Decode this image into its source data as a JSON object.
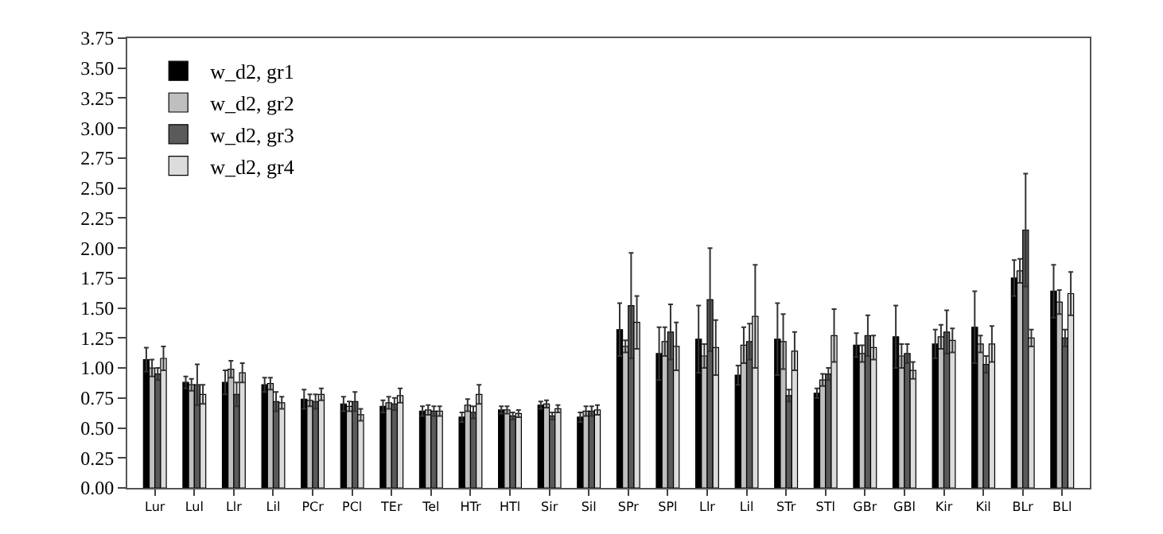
{
  "chart_data": {
    "type": "bar",
    "categories": [
      "Lur",
      "Lul",
      "Llr",
      "Lil",
      "PCr",
      "PCl",
      "TEr",
      "Tel",
      "HTr",
      "HTl",
      "Sir",
      "Sil",
      "SPr",
      "SPl",
      "Llr",
      "Lil",
      "STr",
      "STl",
      "GBr",
      "GBl",
      "Kir",
      "Kil",
      "BLr",
      "BLl"
    ],
    "series": [
      {
        "name": "w_d2, gr1",
        "color": "#000000",
        "values": [
          1.07,
          0.88,
          0.88,
          0.86,
          0.74,
          0.7,
          0.68,
          0.64,
          0.59,
          0.65,
          0.69,
          0.59,
          1.32,
          1.12,
          1.24,
          0.94,
          1.24,
          0.79,
          1.19,
          1.26,
          1.2,
          1.34,
          1.75,
          1.64
        ],
        "errors": [
          0.1,
          0.05,
          0.1,
          0.06,
          0.08,
          0.06,
          0.05,
          0.04,
          0.04,
          0.03,
          0.03,
          0.04,
          0.22,
          0.22,
          0.28,
          0.08,
          0.3,
          0.04,
          0.1,
          0.26,
          0.12,
          0.3,
          0.15,
          0.22
        ]
      },
      {
        "name": "w_d2, gr2",
        "color": "#bfbfbf",
        "values": [
          1.0,
          0.86,
          0.99,
          0.87,
          0.73,
          0.68,
          0.71,
          0.65,
          0.69,
          0.65,
          0.7,
          0.64,
          1.18,
          1.22,
          1.1,
          1.19,
          1.22,
          0.9,
          1.12,
          1.1,
          1.26,
          1.2,
          1.81,
          1.55
        ],
        "errors": [
          0.07,
          0.05,
          0.07,
          0.05,
          0.05,
          0.04,
          0.05,
          0.04,
          0.05,
          0.03,
          0.03,
          0.04,
          0.05,
          0.12,
          0.1,
          0.15,
          0.23,
          0.05,
          0.07,
          0.1,
          0.1,
          0.07,
          0.1,
          0.1
        ]
      },
      {
        "name": "w_d2, gr3",
        "color": "#5a5a5a",
        "values": [
          0.95,
          0.86,
          0.78,
          0.72,
          0.72,
          0.72,
          0.7,
          0.64,
          0.63,
          0.6,
          0.6,
          0.64,
          1.52,
          1.3,
          1.57,
          1.22,
          0.77,
          0.95,
          1.27,
          1.12,
          1.3,
          1.03,
          2.15,
          1.25
        ],
        "errors": [
          0.05,
          0.17,
          0.1,
          0.08,
          0.06,
          0.08,
          0.05,
          0.04,
          0.05,
          0.03,
          0.03,
          0.04,
          0.44,
          0.23,
          0.43,
          0.15,
          0.05,
          0.05,
          0.17,
          0.08,
          0.18,
          0.07,
          0.47,
          0.07
        ]
      },
      {
        "name": "w_d2, gr4",
        "color": "#dcdcdc",
        "values": [
          1.08,
          0.78,
          0.96,
          0.71,
          0.78,
          0.61,
          0.77,
          0.64,
          0.78,
          0.62,
          0.66,
          0.65,
          1.38,
          1.18,
          1.17,
          1.43,
          1.14,
          1.27,
          1.17,
          0.98,
          1.23,
          1.2,
          1.25,
          1.62
        ],
        "errors": [
          0.1,
          0.08,
          0.08,
          0.05,
          0.05,
          0.05,
          0.06,
          0.04,
          0.08,
          0.03,
          0.03,
          0.04,
          0.22,
          0.2,
          0.23,
          0.43,
          0.16,
          0.22,
          0.1,
          0.07,
          0.1,
          0.15,
          0.07,
          0.18
        ]
      }
    ],
    "ylim": [
      0,
      3.75
    ],
    "yticks": [
      {
        "value": 0,
        "label": "0.00"
      },
      {
        "value": 0.25,
        "label": "0.25"
      },
      {
        "value": 0.5,
        "label": "0.50"
      },
      {
        "value": 0.75,
        "label": "0.75"
      },
      {
        "value": 1,
        "label": "1.00"
      },
      {
        "value": 1.25,
        "label": "1.25"
      },
      {
        "value": 1.5,
        "label": "1.50"
      },
      {
        "value": 1.75,
        "label": "1.75"
      },
      {
        "value": 2,
        "label": "2.00"
      },
      {
        "value": 2.25,
        "label": "2.25"
      },
      {
        "value": 2.5,
        "label": "2.50"
      },
      {
        "value": 2.75,
        "label": "2.75"
      },
      {
        "value": 3,
        "label": "3.00"
      },
      {
        "value": 3.25,
        "label": "3.25"
      },
      {
        "value": 3.5,
        "label": "3.50"
      },
      {
        "value": 3.75,
        "label": "3.75"
      }
    ],
    "legend": "top left",
    "grid": false
  }
}
